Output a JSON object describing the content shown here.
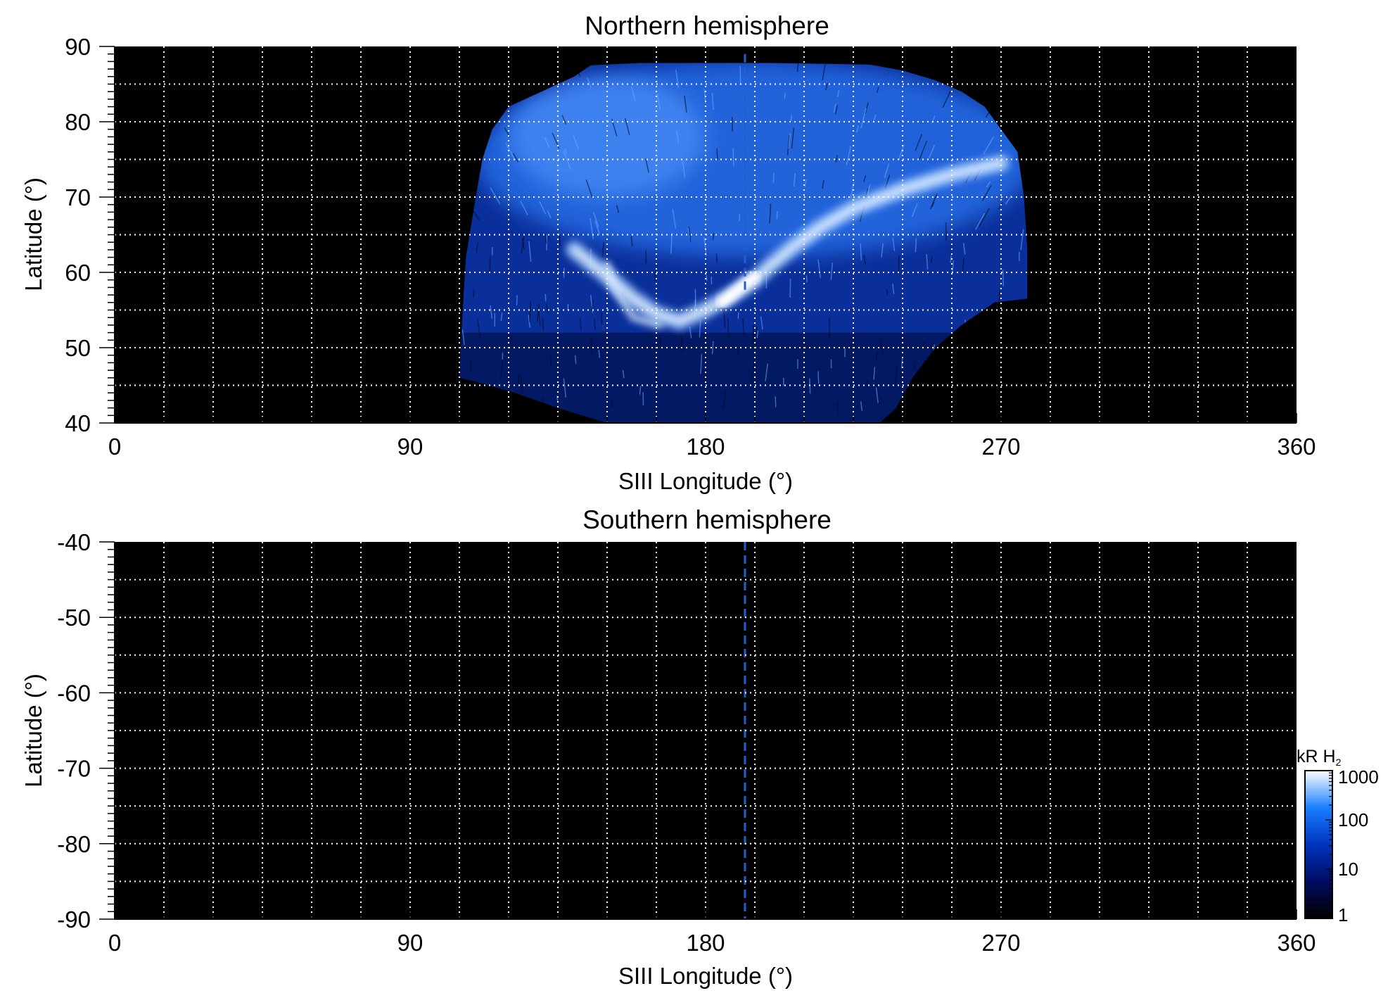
{
  "chart_data": [
    {
      "type": "heatmap",
      "title": "Northern hemisphere",
      "xlabel": "SIII Longitude (°)",
      "ylabel": "Latitude (°)",
      "xlim": [
        0,
        360
      ],
      "ylim": [
        40,
        90
      ],
      "x_ticks": [
        "0",
        "90",
        "180",
        "270",
        "360"
      ],
      "y_ticks": [
        "40",
        "50",
        "60",
        "70",
        "80",
        "90"
      ],
      "grid": true,
      "grid_step": 15,
      "marker_line": {
        "longitude": 192,
        "latitude_range": [
          57,
          89
        ],
        "color": "#1f5fd0",
        "style": "dashed"
      },
      "emission_region": {
        "polygon": [
          [
            105,
            46
          ],
          [
            106,
            55
          ],
          [
            107,
            62
          ],
          [
            110,
            70
          ],
          [
            112,
            75
          ],
          [
            115,
            79
          ],
          [
            120,
            82
          ],
          [
            130,
            84
          ],
          [
            140,
            86
          ],
          [
            145,
            87.5
          ],
          [
            160,
            87.8
          ],
          [
            200,
            87.8
          ],
          [
            230,
            87.6
          ],
          [
            240,
            86.8
          ],
          [
            250,
            85.5
          ],
          [
            258,
            84
          ],
          [
            265,
            82
          ],
          [
            270,
            79
          ],
          [
            275,
            76
          ],
          [
            277,
            70
          ],
          [
            278,
            63
          ],
          [
            278,
            56.5
          ],
          [
            268,
            56
          ],
          [
            258,
            53
          ],
          [
            250,
            50
          ],
          [
            243,
            46
          ],
          [
            238,
            42
          ],
          [
            233,
            40
          ],
          [
            150,
            40
          ],
          [
            135,
            42
          ],
          [
            122,
            44
          ],
          [
            110,
            45.5
          ]
        ],
        "main_oval": [
          [
            140,
            63
          ],
          [
            150,
            59.5
          ],
          [
            158,
            56.5
          ],
          [
            165,
            54.5
          ],
          [
            172,
            53.5
          ],
          [
            180,
            55
          ],
          [
            188,
            57
          ],
          [
            195,
            59
          ],
          [
            200,
            61
          ],
          [
            207,
            63.5
          ],
          [
            215,
            66
          ],
          [
            225,
            68.5
          ],
          [
            240,
            71
          ],
          [
            255,
            73
          ],
          [
            270,
            74.5
          ]
        ],
        "secondary_arc": [
          [
            150,
            61
          ],
          [
            152,
            58
          ],
          [
            158,
            54
          ],
          [
            166,
            53
          ]
        ],
        "brightest_spot": [
          [
            185,
            56
          ],
          [
            195,
            59.5
          ]
        ],
        "peak_kR": 1000
      },
      "colorbar": null
    },
    {
      "type": "heatmap",
      "title": "Southern hemisphere",
      "xlabel": "SIII Longitude (°)",
      "ylabel": "Latitude (°)",
      "xlim": [
        0,
        360
      ],
      "ylim": [
        -90,
        -40
      ],
      "x_ticks": [
        "0",
        "90",
        "180",
        "270",
        "360"
      ],
      "y_ticks": [
        "-40",
        "-50",
        "-60",
        "-70",
        "-80",
        "-90"
      ],
      "grid": true,
      "grid_step": 15,
      "marker_line": {
        "longitude": 192,
        "latitude_range": [
          -90,
          -40
        ],
        "color": "#1f5fd0",
        "style": "dashed"
      },
      "emission_region": null,
      "colorbar": {
        "label_prefix": "kR H",
        "label_subscript": "2",
        "scale": "log",
        "range": [
          1,
          1000
        ],
        "tick_labels": [
          "1",
          "10",
          "100",
          "1000"
        ],
        "colors": [
          "#000000",
          "#000c60",
          "#0033c0",
          "#1a7fff",
          "#ffffff"
        ]
      }
    }
  ]
}
